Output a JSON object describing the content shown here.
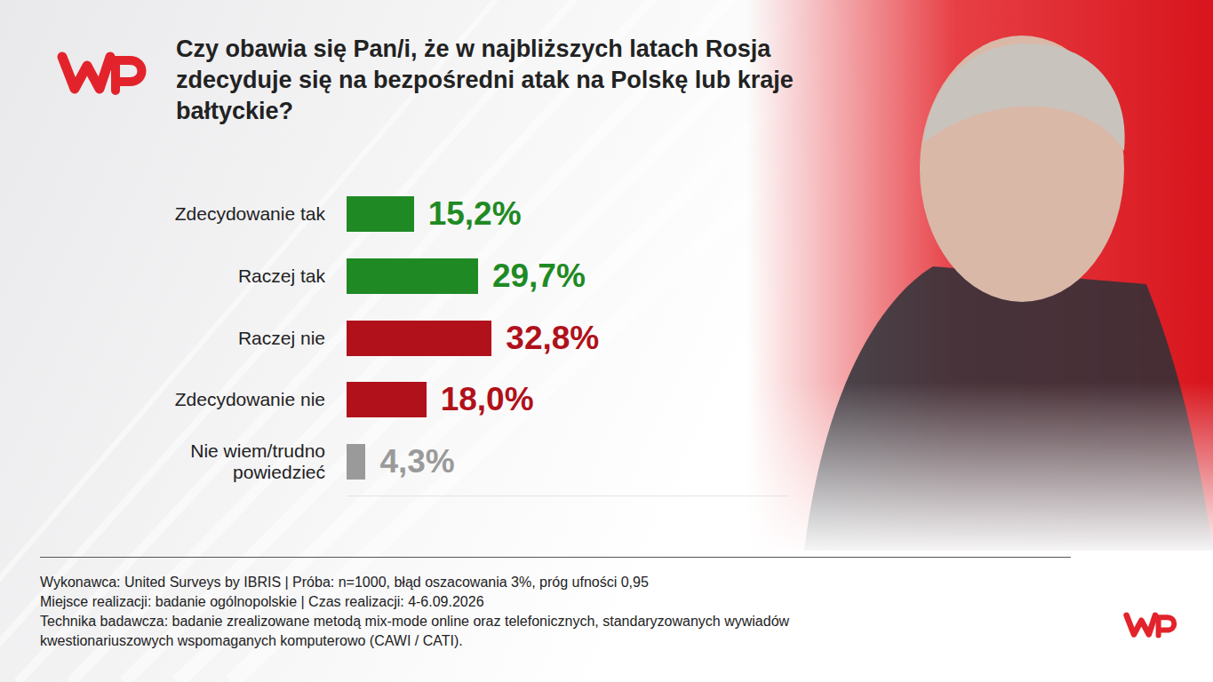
{
  "chart_data": {
    "type": "bar",
    "orientation": "horizontal",
    "title": "Czy obawia się Pan/i, że w najbliższych latach Rosja zdecyduje się na bezpośredni atak na Polskę lub kraje bałtyckie?",
    "categories": [
      "Zdecydowanie tak",
      "Raczej tak",
      "Raczej nie",
      "Zdecydowanie nie",
      "Nie wiem/trudno powiedzieć"
    ],
    "values": [
      15.2,
      29.7,
      32.8,
      18.0,
      4.3
    ],
    "value_labels": [
      "15,2%",
      "29,7%",
      "32,8%",
      "18,0%",
      "4,3%"
    ],
    "colors": [
      "#1f8a24",
      "#1f8a24",
      "#b0111a",
      "#b0111a",
      "#9a9a9a"
    ],
    "xlim": [
      0,
      100
    ],
    "data_labels": true,
    "tick_labels": "y",
    "annotations": [
      "Wykonawca: United Surveys by IBRIS | Próba: n=1000, błąd oszacowania 3%, próg ufności 0,95",
      "Miejsce realizacji: badanie ogólnopolskie | Czas realizacji: 4-6.09.2026",
      "Technika badawcza: badanie zrealizowane metodą mix-mode online oraz telefonicznych, standaryzowanych wywiadów kwestionariuszowych wspomaganych komputerowo (CAWI / CATI)."
    ]
  }
}
